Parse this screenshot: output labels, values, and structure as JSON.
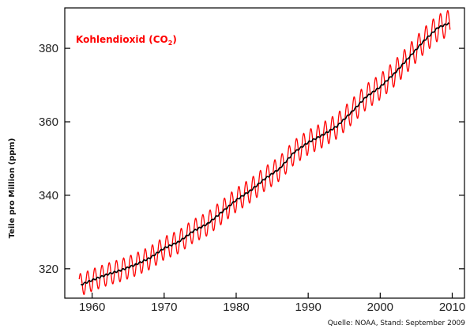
{
  "chart_data": {
    "type": "line",
    "title": "",
    "xlabel": "",
    "ylabel": "Teile pro Million (ppm)",
    "xlim": [
      1956.2,
      2011.7
    ],
    "ylim": [
      312,
      391
    ],
    "x_ticks": [
      1960,
      1970,
      1980,
      1990,
      2000,
      2010
    ],
    "y_ticks": [
      320,
      340,
      360,
      380
    ],
    "grid": false,
    "series_label": {
      "text": "Kohlendioxid (CO",
      "subscript": "2",
      "close": ")"
    },
    "source": "Quelle: NOAA, Stand: September 2009",
    "series": [
      {
        "name": "Kohlendioxid (CO2)",
        "kind": "monthly_seasonal",
        "color": "#ff0000",
        "seasonal_amplitude_ppm": 3.0,
        "x_range": [
          1958.2,
          2009.7
        ]
      },
      {
        "name": "",
        "kind": "annual_trend",
        "color": "#000000",
        "x": [
          1958.5,
          1960,
          1962,
          1964,
          1966,
          1968,
          1970,
          1972,
          1974,
          1976,
          1978,
          1980,
          1982,
          1984,
          1986,
          1988,
          1990,
          1992,
          1994,
          1996,
          1998,
          2000,
          2002,
          2004,
          2006,
          2008,
          2009.5
        ],
        "y": [
          315.7,
          316.9,
          318.4,
          319.6,
          321.1,
          322.9,
          325.6,
          327.3,
          330.2,
          332.2,
          335.4,
          338.7,
          341.3,
          344.5,
          347.2,
          351.6,
          354.4,
          356.4,
          358.8,
          362.6,
          366.7,
          369.5,
          373.2,
          377.5,
          381.9,
          385.6,
          386.8
        ]
      }
    ]
  },
  "colors": {
    "series": "#ff0000",
    "trend": "#000000",
    "axis": "#000000"
  }
}
